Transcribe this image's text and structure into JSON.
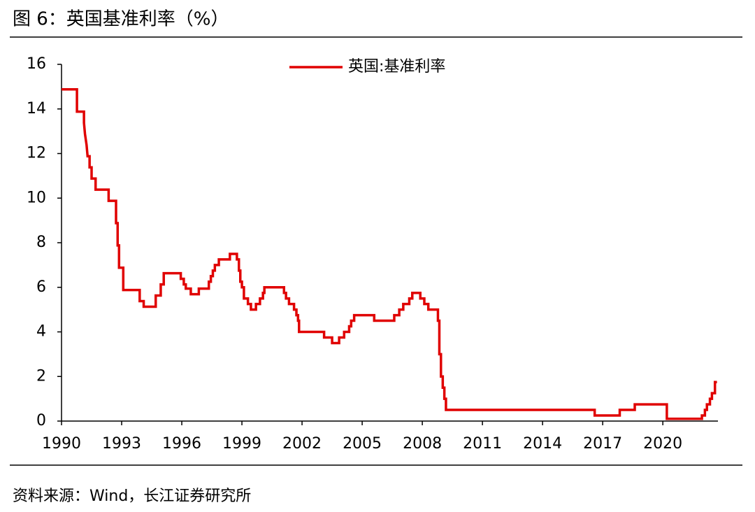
{
  "header": {
    "title": "图 6：英国基准利率（%）"
  },
  "chart_data": {
    "type": "line",
    "step": true,
    "x": [
      1990,
      1990.77,
      1990.77,
      1991.12,
      1991.12,
      1991.17,
      1991.25,
      1991.3,
      1991.4,
      1991.4,
      1991.5,
      1991.5,
      1991.7,
      1991.7,
      1992.35,
      1992.35,
      1992.72,
      1992.72,
      1992.8,
      1992.8,
      1992.87,
      1992.87,
      1993.08,
      1993.08,
      1993.9,
      1993.9,
      1994.1,
      1994.1,
      1994.7,
      1994.7,
      1994.95,
      1994.95,
      1995.1,
      1995.1,
      1995.95,
      1995.95,
      1996.1,
      1996.1,
      1996.2,
      1996.2,
      1996.45,
      1996.45,
      1996.85,
      1996.85,
      1997.35,
      1997.35,
      1997.45,
      1997.45,
      1997.55,
      1997.55,
      1997.65,
      1997.65,
      1997.85,
      1997.85,
      1998.4,
      1998.4,
      1998.75,
      1998.75,
      1998.85,
      1998.85,
      1998.92,
      1998.92,
      1999.0,
      1999.0,
      1999.1,
      1999.1,
      1999.3,
      1999.3,
      1999.45,
      1999.45,
      1999.7,
      1999.7,
      1999.9,
      1999.9,
      2000.05,
      2000.05,
      2000.12,
      2000.12,
      2001.1,
      2001.1,
      2001.2,
      2001.2,
      2001.35,
      2001.35,
      2001.6,
      2001.6,
      2001.72,
      2001.72,
      2001.8,
      2001.8,
      2001.85,
      2001.85,
      2003.1,
      2003.1,
      2003.5,
      2003.5,
      2003.85,
      2003.85,
      2004.1,
      2004.1,
      2004.35,
      2004.35,
      2004.45,
      2004.45,
      2004.6,
      2004.6,
      2005.6,
      2005.6,
      2006.6,
      2006.6,
      2006.85,
      2006.85,
      2007.05,
      2007.05,
      2007.35,
      2007.35,
      2007.5,
      2007.5,
      2007.9,
      2007.9,
      2008.1,
      2008.1,
      2008.3,
      2008.3,
      2008.78,
      2008.78,
      2008.85,
      2008.85,
      2008.93,
      2008.93,
      2009.02,
      2009.02,
      2009.1,
      2009.1,
      2009.18,
      2009.18,
      2016.6,
      2016.6,
      2017.85,
      2017.85,
      2018.6,
      2018.6,
      2020.2,
      2020.2,
      2021.95,
      2021.95,
      2022.1,
      2022.1,
      2022.2,
      2022.2,
      2022.35,
      2022.35,
      2022.45,
      2022.45,
      2022.6,
      2022.6,
      2022.7
    ],
    "series": [
      {
        "name": "英国:基准利率",
        "color": "#e00000",
        "values": [
          14.88,
          14.88,
          13.88,
          13.88,
          13.38,
          12.88,
          12.38,
          11.88,
          11.88,
          11.38,
          11.38,
          10.88,
          10.88,
          10.38,
          10.38,
          9.88,
          9.88,
          8.88,
          8.88,
          7.88,
          7.88,
          6.88,
          6.88,
          5.88,
          5.88,
          5.38,
          5.38,
          5.13,
          5.13,
          5.63,
          5.63,
          6.13,
          6.13,
          6.63,
          6.63,
          6.38,
          6.38,
          6.13,
          6.13,
          5.94,
          5.94,
          5.69,
          5.69,
          5.94,
          5.94,
          6.25,
          6.25,
          6.5,
          6.5,
          6.75,
          6.75,
          7.0,
          7.0,
          7.25,
          7.25,
          7.5,
          7.5,
          7.25,
          7.25,
          6.75,
          6.75,
          6.25,
          6.25,
          6.0,
          6.0,
          5.5,
          5.5,
          5.25,
          5.25,
          5.0,
          5.0,
          5.25,
          5.25,
          5.5,
          5.5,
          5.75,
          5.75,
          6.0,
          6.0,
          5.75,
          5.75,
          5.5,
          5.5,
          5.25,
          5.25,
          5.0,
          5.0,
          4.75,
          4.75,
          4.5,
          4.5,
          4.0,
          4.0,
          3.75,
          3.75,
          3.5,
          3.5,
          3.75,
          3.75,
          4.0,
          4.0,
          4.25,
          4.25,
          4.5,
          4.5,
          4.75,
          4.75,
          4.5,
          4.5,
          4.75,
          4.75,
          5.0,
          5.0,
          5.25,
          5.25,
          5.5,
          5.5,
          5.75,
          5.75,
          5.5,
          5.5,
          5.25,
          5.25,
          5.0,
          5.0,
          4.5,
          4.5,
          3.0,
          3.0,
          2.0,
          2.0,
          1.5,
          1.5,
          1.0,
          1.0,
          0.5,
          0.5,
          0.25,
          0.25,
          0.5,
          0.5,
          0.75,
          0.75,
          0.1,
          0.1,
          0.25,
          0.25,
          0.5,
          0.5,
          0.75,
          0.75,
          1.0,
          1.0,
          1.25,
          1.25,
          1.75,
          1.75
        ]
      }
    ],
    "xlim": [
      1990,
      2022.75
    ],
    "xticks": [
      1990,
      1993,
      1996,
      1999,
      2002,
      2005,
      2008,
      2011,
      2014,
      2017,
      2020
    ],
    "ylim": [
      0,
      16
    ],
    "yticks": [
      0,
      2,
      4,
      6,
      8,
      10,
      12,
      14,
      16
    ],
    "grid": false,
    "legend": "top"
  },
  "footer": {
    "source": "资料来源：Wind，长江证券研究所"
  }
}
